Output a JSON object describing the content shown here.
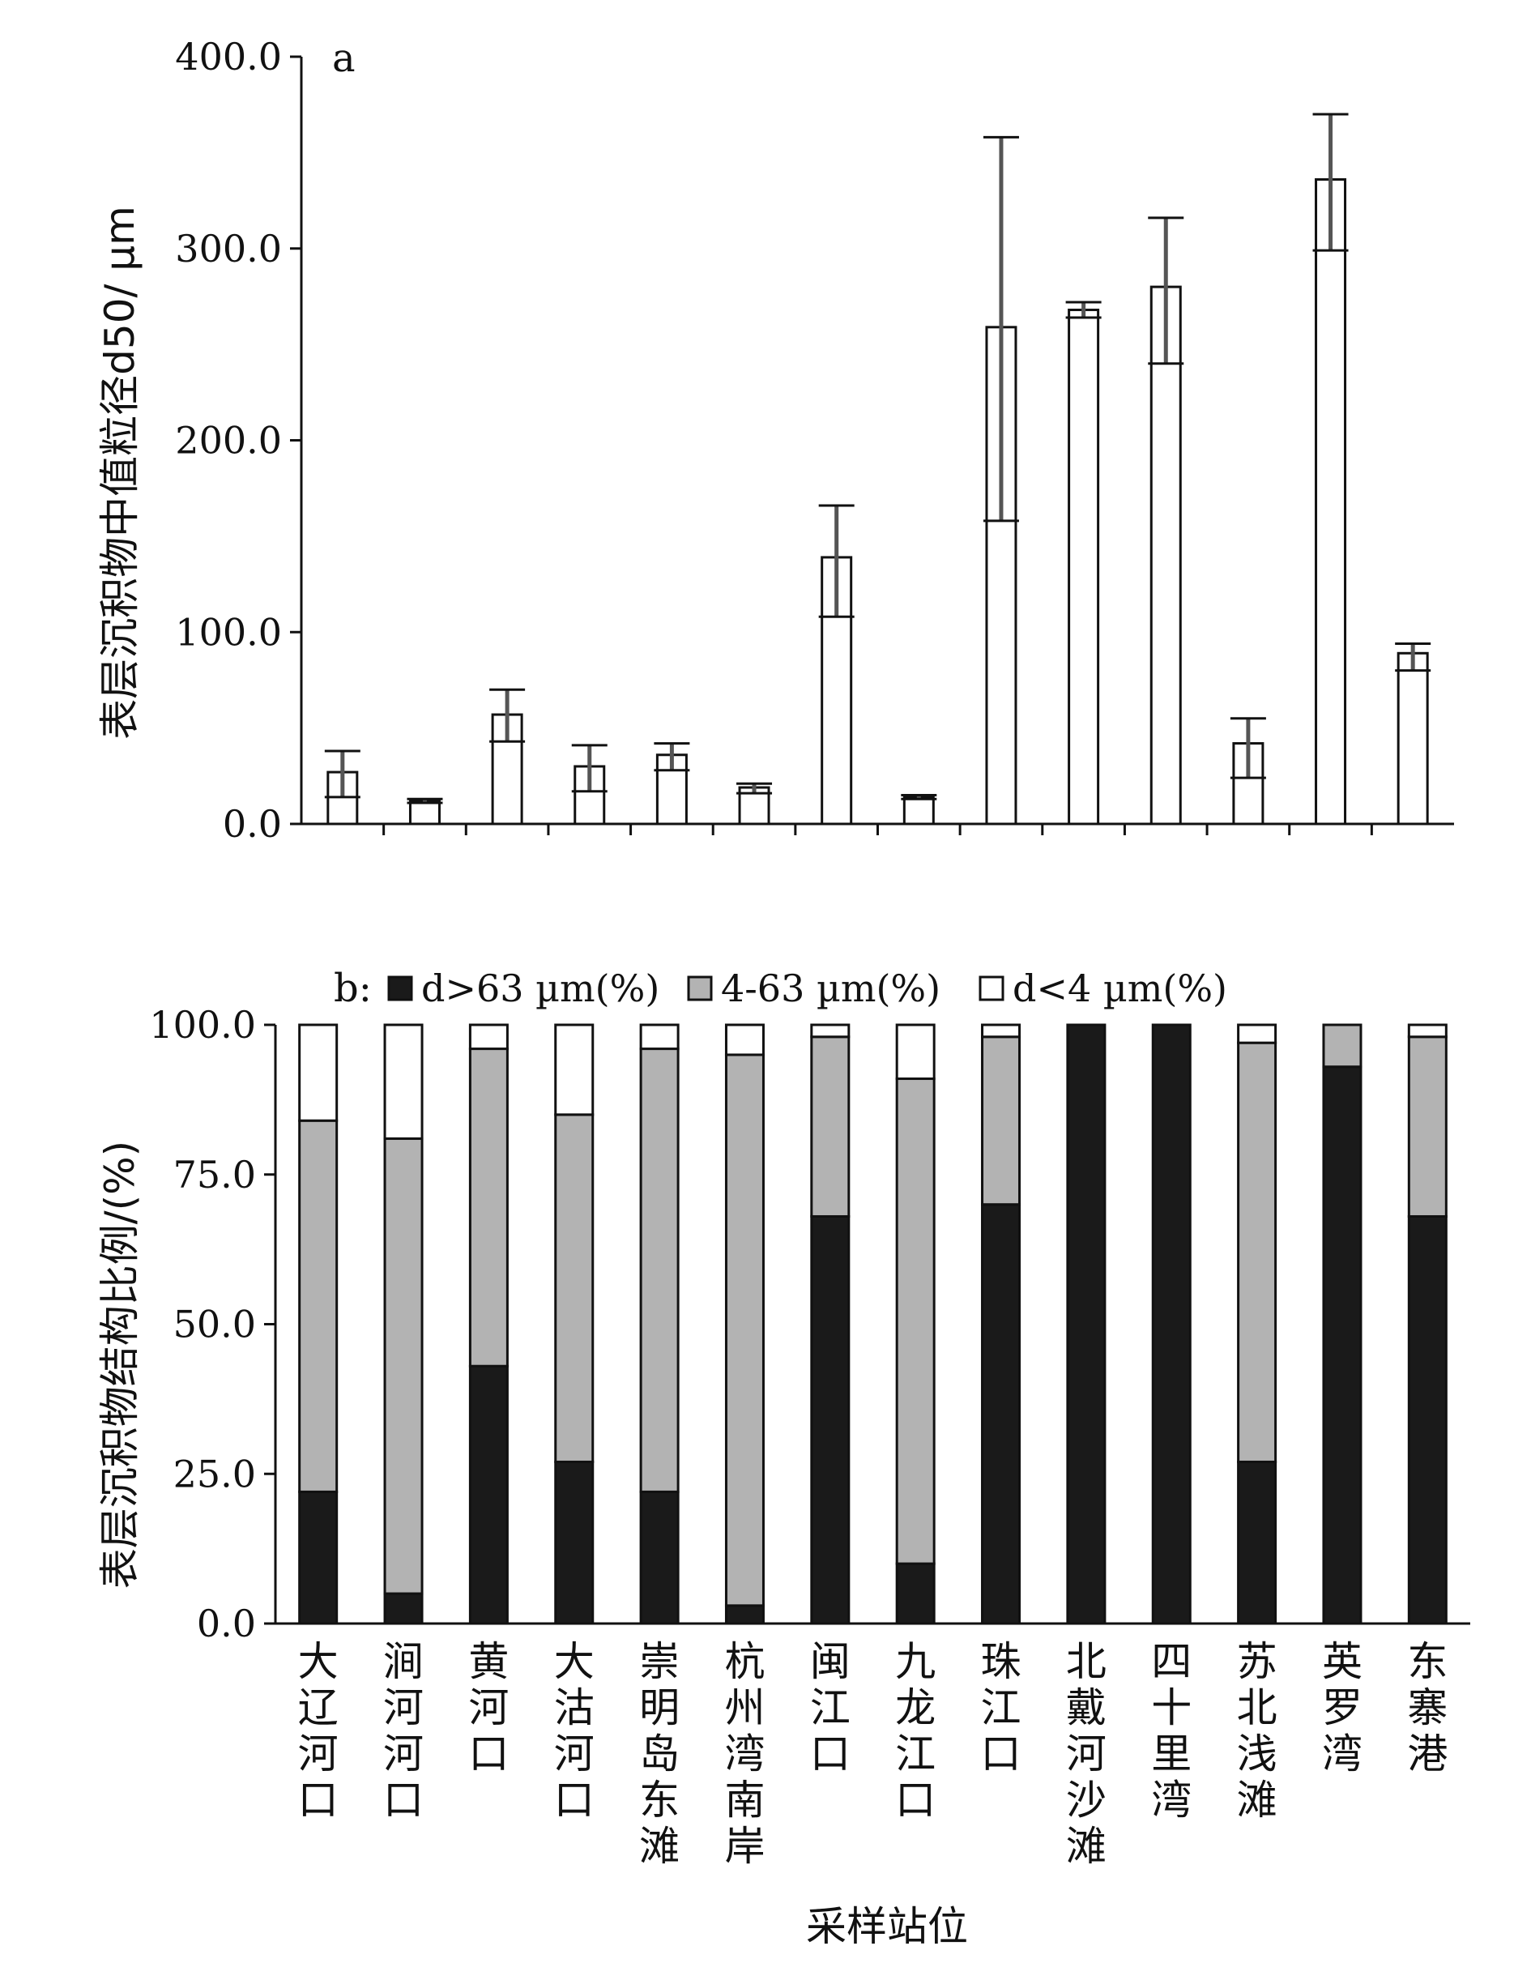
{
  "chart_data": [
    {
      "type": "bar",
      "panel_label": "a",
      "ylabel": "表层沉积物中值粒径d50/ µm",
      "ytick_labels": [
        "0.0",
        "100.0",
        "200.0",
        "300.0",
        "400.0"
      ],
      "ylim": [
        0,
        400
      ],
      "categories": [
        "大辽河口",
        "涧河河口",
        "黄河口",
        "大沽河口",
        "崇明岛东滩",
        "杭州湾南岸",
        "闽江口",
        "九龙江口",
        "珠江口",
        "北戴河沙滩",
        "四十里湾",
        "苏北浅滩",
        "英罗湾",
        "东寨港"
      ],
      "values": [
        27,
        12,
        57,
        30,
        36,
        19,
        139,
        14,
        259,
        268,
        280,
        42,
        336,
        89
      ],
      "error_low": [
        14,
        11,
        43,
        17,
        28,
        16,
        108,
        13,
        158,
        264,
        240,
        24,
        299,
        80
      ],
      "error_high": [
        38,
        13,
        70,
        41,
        42,
        21,
        166,
        15,
        358,
        272,
        316,
        55,
        370,
        94
      ],
      "bar_fill": "#ffffff",
      "grid": false
    },
    {
      "type": "bar",
      "stacked": true,
      "panel_label": "b:",
      "ylabel": "表层沉积物结构比例/(%)",
      "xlabel": "采样站位",
      "ytick_labels": [
        "0.0",
        "25.0",
        "50.0",
        "75.0",
        "100.0"
      ],
      "ylim": [
        0,
        100
      ],
      "categories": [
        "大辽河口",
        "涧河河口",
        "黄河口",
        "大沽河口",
        "崇明岛东滩",
        "杭州湾南岸",
        "闽江口",
        "九龙江口",
        "珠江口",
        "北戴河沙滩",
        "四十里湾",
        "苏北浅滩",
        "英罗湾",
        "东寨港"
      ],
      "legend_position": "top",
      "series": [
        {
          "name": "d>63 µm(%)",
          "color": "#1a1a1a",
          "values": [
            22,
            5,
            43,
            27,
            22,
            3,
            68,
            10,
            70,
            100,
            100,
            27,
            93,
            68
          ]
        },
        {
          "name": "4-63 µm(%)",
          "color": "#b3b3b3",
          "values": [
            62,
            76,
            53,
            58,
            74,
            92,
            30,
            81,
            28,
            0,
            0,
            70,
            7,
            30
          ]
        },
        {
          "name": "d<4 µm(%)",
          "color": "#ffffff",
          "values": [
            16,
            19,
            4,
            15,
            4,
            5,
            2,
            9,
            2,
            0,
            0,
            3,
            0,
            2
          ]
        }
      ],
      "grid": false
    }
  ]
}
